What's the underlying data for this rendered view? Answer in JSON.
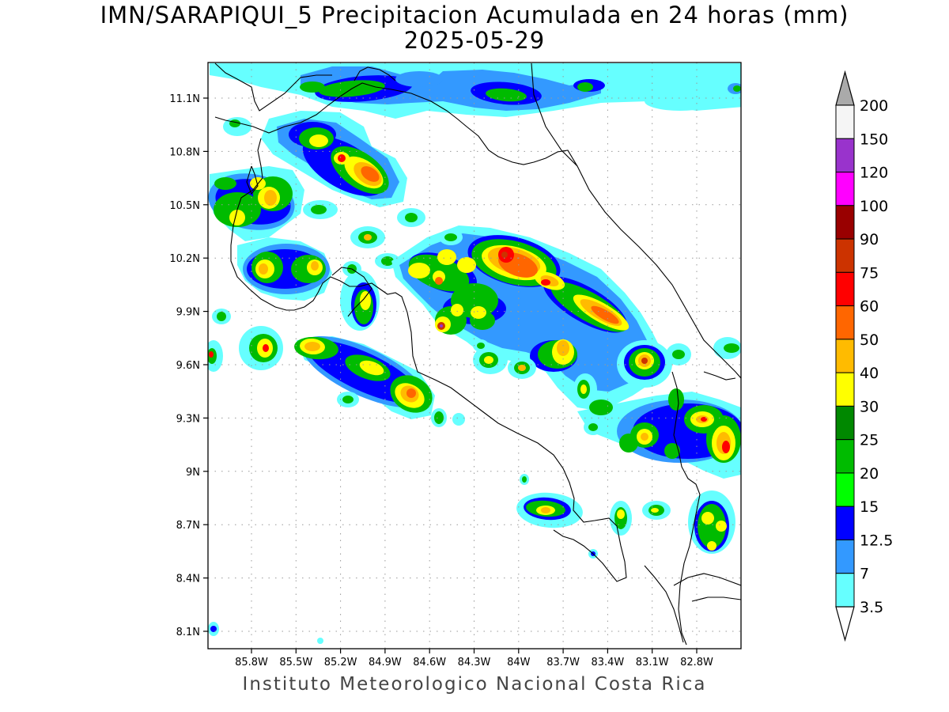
{
  "title_line1": "IMN/SARAPIQUI_5 Precipitacion Acumulada en 24 horas (mm)",
  "title_line2": "2025-05-29",
  "credit": "Instituto Meteorologico Nacional Costa Rica",
  "map": {
    "lon_range": [
      -86.05,
      -83.05
    ],
    "lat_range": [
      8.0,
      11.3
    ],
    "lat_ticks": [
      {
        "value": 11.1,
        "label": "11.1N"
      },
      {
        "value": 10.8,
        "label": "10.8N"
      },
      {
        "value": 10.5,
        "label": "10.5N"
      },
      {
        "value": 10.2,
        "label": "10.2N"
      },
      {
        "value": 9.9,
        "label": "9.9N"
      },
      {
        "value": 9.6,
        "label": "9.6N"
      },
      {
        "value": 9.3,
        "label": "9.3N"
      },
      {
        "value": 9.0,
        "label": "9N"
      },
      {
        "value": 8.7,
        "label": "8.7N"
      },
      {
        "value": 8.4,
        "label": "8.4N"
      },
      {
        "value": 8.1,
        "label": "8.1N"
      }
    ],
    "lon_ticks": [
      {
        "value": -85.8,
        "label": "85.8W"
      },
      {
        "value": -85.5,
        "label": "85.5W"
      },
      {
        "value": -85.2,
        "label": "85.2W"
      },
      {
        "value": -84.9,
        "label": "84.9W"
      },
      {
        "value": -84.6,
        "label": "84.6W"
      },
      {
        "value": -84.3,
        "label": "84.3W"
      },
      {
        "value": -84.0,
        "label": "84W"
      },
      {
        "value": -83.7,
        "label": "83.7W"
      },
      {
        "value": -83.4,
        "label": "83.4W"
      },
      {
        "value": -83.1,
        "label": "83.1W"
      },
      {
        "value": -82.8,
        "label": "82.8W"
      }
    ],
    "grid": true,
    "boundary_color": "#000000"
  },
  "colorbar": {
    "labels": [
      "200",
      "150",
      "120",
      "100",
      "90",
      "75",
      "60",
      "50",
      "40",
      "30",
      "25",
      "20",
      "15",
      "12.5",
      "7",
      "3.5"
    ],
    "colors": [
      "#f5f5f5",
      "#9933cc",
      "#ff00ff",
      "#990000",
      "#cc3300",
      "#ff0000",
      "#ff6600",
      "#ffbb00",
      "#ffff00",
      "#008800",
      "#00bb00",
      "#00ff00",
      "#0000ff",
      "#3399ff",
      "#66ffff"
    ],
    "over_color": "#aaaaaa",
    "under_color": "#ffffff"
  }
}
